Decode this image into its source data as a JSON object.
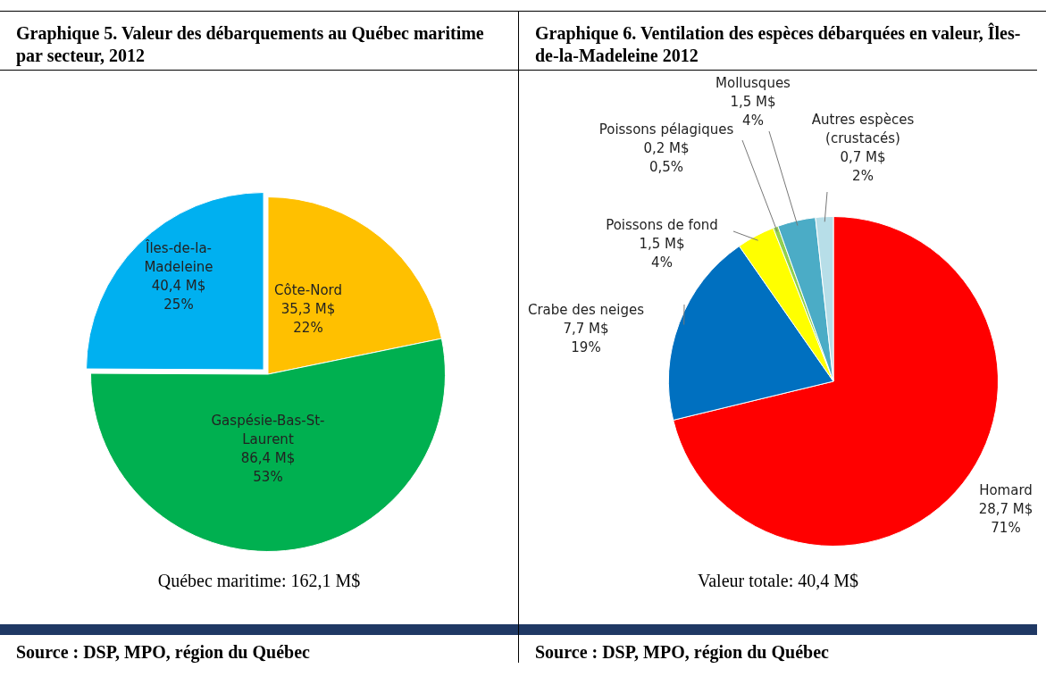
{
  "chart_data": [
    {
      "type": "pie",
      "title": "Graphique 5. Valeur des débarquements au Québec maritime par secteur, 2012",
      "categories": [
        "Côte-Nord",
        "Gaspésie-Bas-St-Laurent",
        "Îles-de-la-Madeleine"
      ],
      "values": [
        35.3,
        86.4,
        40.4
      ],
      "colors": [
        "#ffc000",
        "#00b050",
        "#00b0f0"
      ],
      "value_labels": [
        "35,3 M$\n22%",
        "86,4 M$\n53%",
        "40,4 M$\n25%"
      ],
      "legend": false,
      "annotations": [
        "Québec maritime: 162,1 M$",
        "Source : DSP, MPO, région du Québec"
      ]
    },
    {
      "type": "pie",
      "title": "Graphique 6. Ventilation des espèces débarquées en valeur, Îles-de-la-Madeleine 2012",
      "categories": [
        "Homard",
        "Crabe des neiges",
        "Poissons de fond",
        "Poissons pélagiques",
        "Mollusques",
        "Autres espèces (crustacés)"
      ],
      "values": [
        28.7,
        7.7,
        1.5,
        0.2,
        1.5,
        0.7
      ],
      "colors": [
        "#ff0000",
        "#0070c0",
        "#ffff00",
        "#92d050",
        "#4bacc6",
        "#b7dee8"
      ],
      "value_labels": [
        "28,7 M$\n71%",
        "7,7 M$\n19%",
        "1,5 M$\n4%",
        "0,2 M$\n0,5%",
        "1,5 M$\n4%",
        "0,7 M$\n2%"
      ],
      "legend": false,
      "annotations": [
        "Valeur totale: 40,4 M$",
        "Source : DSP, MPO, région du Québec"
      ]
    }
  ]
}
